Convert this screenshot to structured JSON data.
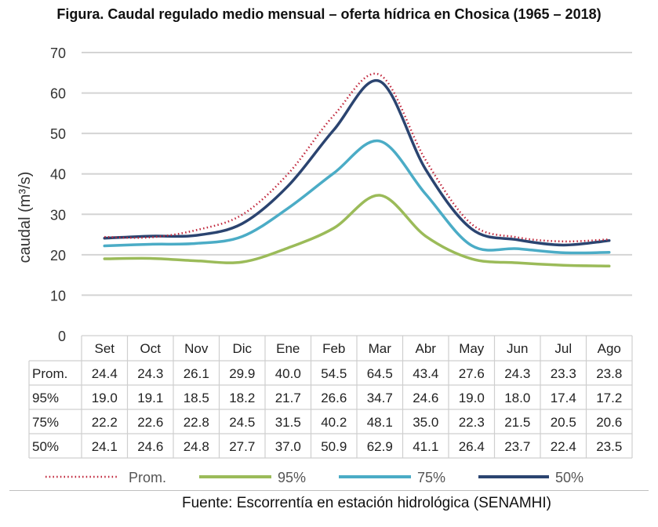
{
  "figure": {
    "title": "Figura. Caudal regulado medio mensual – oferta hídrica en Chosica (1965 – 2018)",
    "source": "Fuente: Escorrentía en estación hidrológica (SENAMHI)"
  },
  "chart_data": {
    "type": "line",
    "ylabel": "caudal (m³/s)",
    "ylim": [
      0,
      70
    ],
    "yticks": [
      0,
      10,
      20,
      30,
      40,
      50,
      60,
      70
    ],
    "grid": true,
    "legend_placement": "bottom",
    "categories": [
      "Set",
      "Oct",
      "Nov",
      "Dic",
      "Ene",
      "Feb",
      "Mar",
      "Abr",
      "May",
      "Jun",
      "Jul",
      "Ago"
    ],
    "series": [
      {
        "name": "Prom.",
        "color": "#c0253a",
        "style": "dotted",
        "values": [
          24.4,
          24.3,
          26.1,
          29.9,
          40.0,
          54.5,
          64.5,
          43.4,
          27.6,
          24.3,
          23.3,
          23.8
        ]
      },
      {
        "name": "95%",
        "color": "#9bbb59",
        "style": "solid",
        "values": [
          19.0,
          19.1,
          18.5,
          18.2,
          21.7,
          26.6,
          34.7,
          24.6,
          19.0,
          18.0,
          17.4,
          17.2
        ]
      },
      {
        "name": "75%",
        "color": "#4bacc6",
        "style": "solid",
        "values": [
          22.2,
          22.6,
          22.8,
          24.5,
          31.5,
          40.2,
          48.1,
          35.0,
          22.3,
          21.5,
          20.5,
          20.6
        ]
      },
      {
        "name": "50%",
        "color": "#2b4470",
        "style": "solid",
        "values": [
          24.1,
          24.6,
          24.8,
          27.7,
          37.0,
          50.9,
          62.9,
          41.1,
          26.4,
          23.7,
          22.4,
          23.5
        ]
      }
    ],
    "table_labels": [
      "Prom.",
      "95%",
      "75%",
      "50%"
    ],
    "table_values": [
      [
        "24.4",
        "24.3",
        "26.1",
        "29.9",
        "40.0",
        "54.5",
        "64.5",
        "43.4",
        "27.6",
        "24.3",
        "23.3",
        "23.8"
      ],
      [
        "19.0",
        "19.1",
        "18.5",
        "18.2",
        "21.7",
        "26.6",
        "34.7",
        "24.6",
        "19.0",
        "18.0",
        "17.4",
        "17.2"
      ],
      [
        "22.2",
        "22.6",
        "22.8",
        "24.5",
        "31.5",
        "40.2",
        "48.1",
        "35.0",
        "22.3",
        "21.5",
        "20.5",
        "20.6"
      ],
      [
        "24.1",
        "24.6",
        "24.8",
        "27.7",
        "37.0",
        "50.9",
        "62.9",
        "41.1",
        "26.4",
        "23.7",
        "22.4",
        "23.5"
      ]
    ]
  }
}
